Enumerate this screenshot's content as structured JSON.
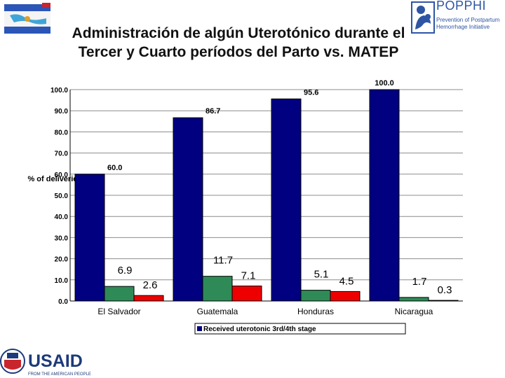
{
  "logos": {
    "poppphi": {
      "name": "POPPHI",
      "tagline_1": "Prevention of Postpartum",
      "tagline_2": "Hemorrhage Initiative"
    },
    "usaid": {
      "name": "USAID",
      "tagline": "FROM THE AMERICAN PEOPLE"
    }
  },
  "chart_data": {
    "type": "bar",
    "title": "Administración de algún Uterotónico durante el Tercer y Cuarto períodos del Parto vs. MATEP",
    "ylabel": "% of deliveries",
    "ylim": [
      0,
      100
    ],
    "yticks": [
      "0.0",
      "10.0",
      "20.0",
      "30.0",
      "40.0",
      "50.0",
      "60.0",
      "70.0",
      "80.0",
      "90.0",
      "100.0"
    ],
    "categories": [
      "El Salvador",
      "Guatemala",
      "Honduras",
      "Nicaragua"
    ],
    "series": [
      {
        "name": "Received uterotonic 3rd/4th stage",
        "values": [
          60.0,
          86.7,
          95.6,
          100.0
        ],
        "labels": [
          "60.0",
          "86.7",
          "95.6",
          "100.0"
        ],
        "color": "#000080"
      },
      {
        "name": "",
        "values": [
          6.9,
          11.7,
          5.1,
          1.7
        ],
        "labels": [
          "6.9",
          "11.7",
          "5.1",
          "1.7"
        ],
        "color": "#2e8b57"
      },
      {
        "name": "",
        "values": [
          2.6,
          7.1,
          4.5,
          0.3
        ],
        "labels": [
          "2.6",
          "7.1",
          "4.5",
          "0.3"
        ],
        "color": "#ee0000"
      }
    ],
    "grid": true,
    "legend": "bottom"
  }
}
